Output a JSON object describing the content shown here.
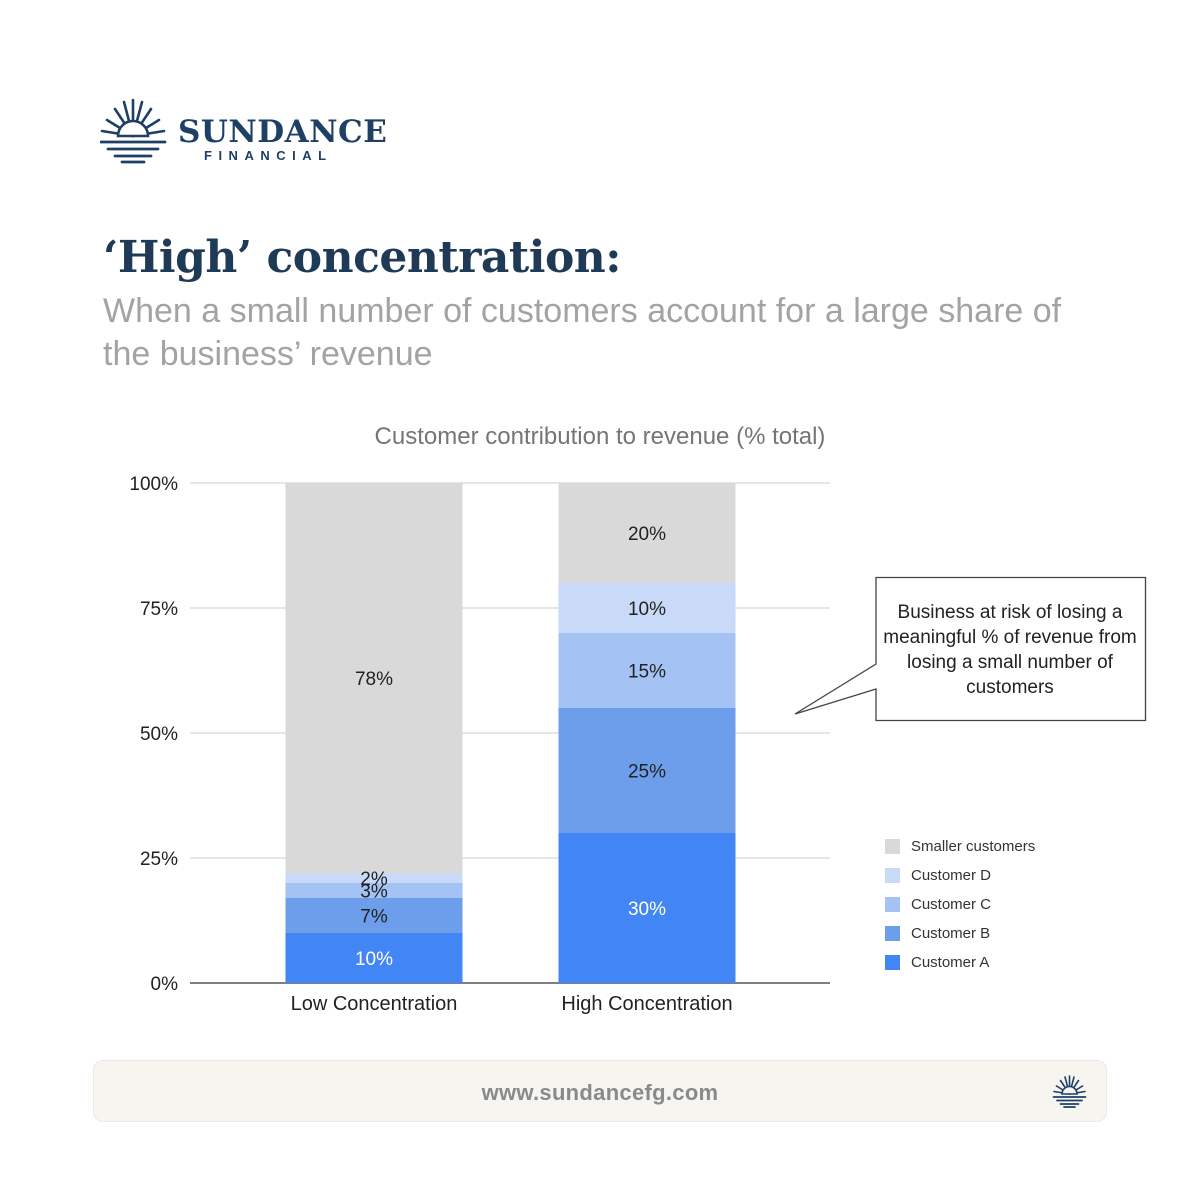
{
  "brand": {
    "name": "SUNDANCE",
    "sub": "FINANCIAL",
    "color": "#1e3f66"
  },
  "headline": "‘High’ concentration:",
  "subheadline": "When a small number of customers account for a large share of the business’ revenue",
  "chart_data": {
    "type": "bar",
    "stacked": true,
    "title": "Customer contribution to revenue (% total)",
    "categories": [
      "Low Concentration",
      "High Concentration"
    ],
    "y_ticks": [
      "0%",
      "25%",
      "50%",
      "75%",
      "100%"
    ],
    "ylim": [
      0,
      100
    ],
    "grid": true,
    "legend_position": "right",
    "series": [
      {
        "name": "Customer A",
        "values": [
          10,
          30
        ],
        "labels": [
          "10%",
          "30%"
        ],
        "color": "#4285f4",
        "label_color": "#ffffff"
      },
      {
        "name": "Customer B",
        "values": [
          7,
          25
        ],
        "labels": [
          "7%",
          "25%"
        ],
        "color": "#6d9eeb",
        "label_color": "#222222"
      },
      {
        "name": "Customer C",
        "values": [
          3,
          15
        ],
        "labels": [
          "3%",
          "15%"
        ],
        "color": "#a4c2f4",
        "label_color": "#222222"
      },
      {
        "name": "Customer D",
        "values": [
          2,
          10
        ],
        "labels": [
          "2%",
          "10%"
        ],
        "color": "#c9daf8",
        "label_color": "#222222"
      },
      {
        "name": "Smaller customers",
        "values": [
          78,
          20
        ],
        "labels": [
          "78%",
          "20%"
        ],
        "color": "#d9d9d9",
        "label_color": "#222222"
      }
    ],
    "annotation": "Business at risk of losing a meaningful % of revenue from losing a small number of customers"
  },
  "footer": {
    "url": "www.sundancefg.com"
  }
}
